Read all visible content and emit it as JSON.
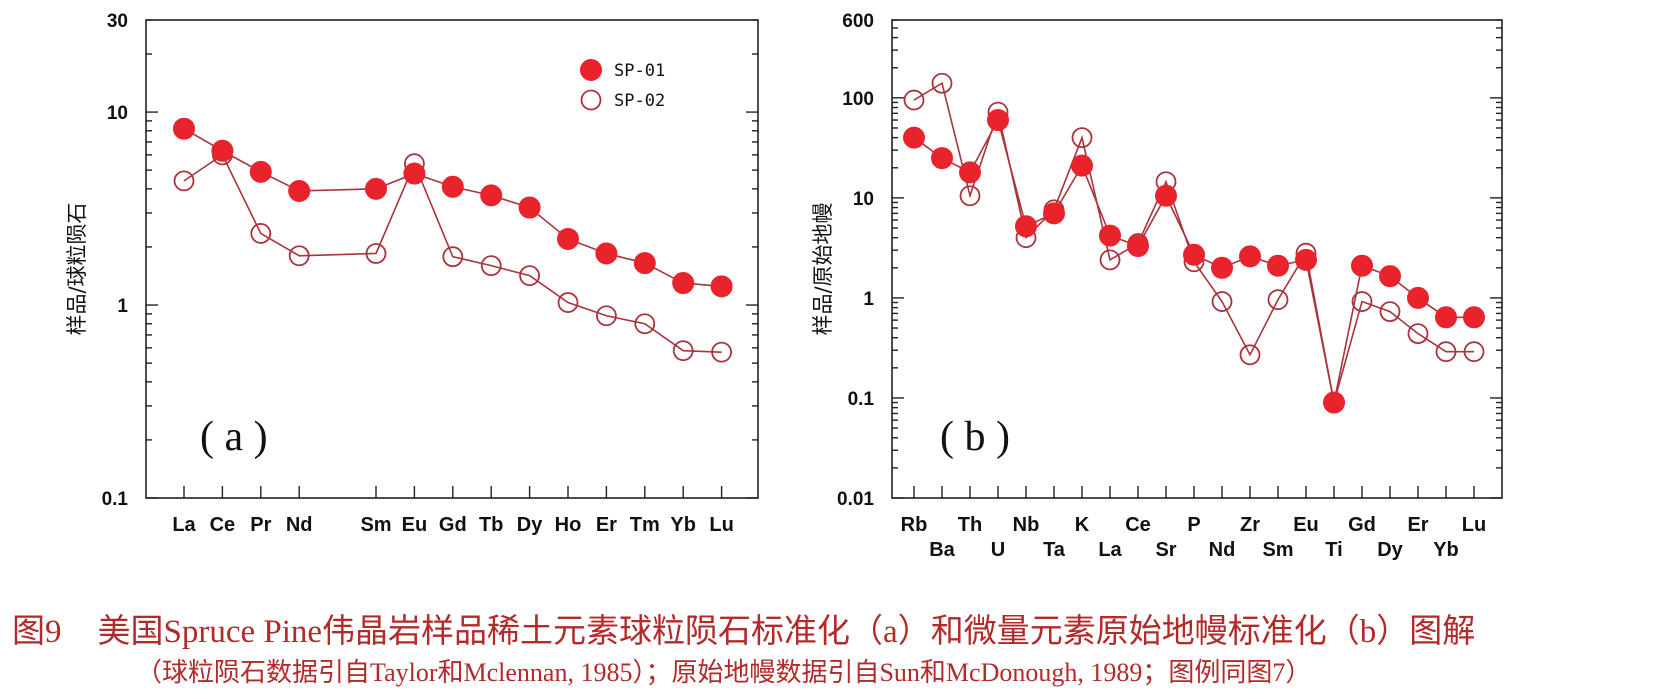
{
  "chart_data": [
    {
      "type": "line",
      "panel_label": "( a )",
      "ylabel": "样品/球粒陨石",
      "yscale": "log",
      "ylim": [
        0.1,
        30
      ],
      "ytick_labels": [
        "30",
        "10",
        "1",
        "0.1"
      ],
      "ytick_values": [
        30,
        10,
        1,
        0.1
      ],
      "x_positions": [
        1,
        2,
        3,
        4,
        6,
        7,
        8,
        9,
        10,
        11,
        12,
        13,
        14,
        15
      ],
      "categories": [
        "La",
        "Ce",
        "Pr",
        "Nd",
        "Sm",
        "Eu",
        "Gd",
        "Tb",
        "Dy",
        "Ho",
        "Er",
        "Tm",
        "Yb",
        "Lu"
      ],
      "legend": [
        "SP-01",
        "SP-02"
      ],
      "series": [
        {
          "name": "SP-01",
          "marker": "filled-circle",
          "values": [
            8.2,
            6.3,
            4.9,
            3.9,
            4.0,
            4.8,
            4.1,
            3.7,
            3.2,
            2.2,
            1.85,
            1.65,
            1.3,
            1.25
          ]
        },
        {
          "name": "SP-02",
          "marker": "open-circle",
          "values": [
            4.4,
            6.0,
            2.35,
            1.8,
            1.85,
            5.4,
            1.78,
            1.6,
            1.42,
            1.03,
            0.88,
            0.8,
            0.58,
            0.57
          ]
        }
      ]
    },
    {
      "type": "line",
      "panel_label": "( b )",
      "ylabel": "样品/原始地幔",
      "yscale": "log",
      "ylim": [
        0.01,
        600
      ],
      "ytick_labels": [
        "600",
        "100",
        "10",
        "1",
        "0.1",
        "0.01"
      ],
      "ytick_values": [
        600,
        100,
        10,
        1,
        0.1,
        0.01
      ],
      "categories": [
        "Rb",
        "Ba",
        "Th",
        "U",
        "Nb",
        "Ta",
        "K",
        "La",
        "Ce",
        "Sr",
        "P",
        "Nd",
        "Zr",
        "Sm",
        "Eu",
        "Ti",
        "Gd",
        "Dy",
        "Er",
        "Yb",
        "Lu"
      ],
      "series": [
        {
          "name": "SP-01",
          "marker": "filled-circle",
          "values": [
            40,
            25,
            18,
            60,
            5.2,
            7.0,
            21,
            4.2,
            3.3,
            10.5,
            2.7,
            2.0,
            2.6,
            2.1,
            2.4,
            0.09,
            2.1,
            1.65,
            1.0,
            0.64,
            0.64
          ]
        },
        {
          "name": "SP-02",
          "marker": "open-circle",
          "values": [
            95,
            140,
            10.5,
            72,
            4.0,
            7.6,
            40,
            2.4,
            3.5,
            14.5,
            2.3,
            0.92,
            0.27,
            0.96,
            2.8,
            0.09,
            0.92,
            0.73,
            0.44,
            0.29,
            0.29
          ]
        }
      ]
    }
  ],
  "colors": {
    "line": "#a8343c",
    "filled_marker": "#e8232c",
    "caption": "#b22a2a"
  },
  "caption": {
    "figure_number": "图9",
    "title": "美国Spruce Pine伟晶岩样品稀土元素球粒陨石标准化（a）和微量元素原始地幔标准化（b）图解",
    "note": "（球粒陨石数据引自Taylor和Mclennan, 1985）；原始地幔数据引自Sun和McDonough, 1989；图例同图7）"
  }
}
